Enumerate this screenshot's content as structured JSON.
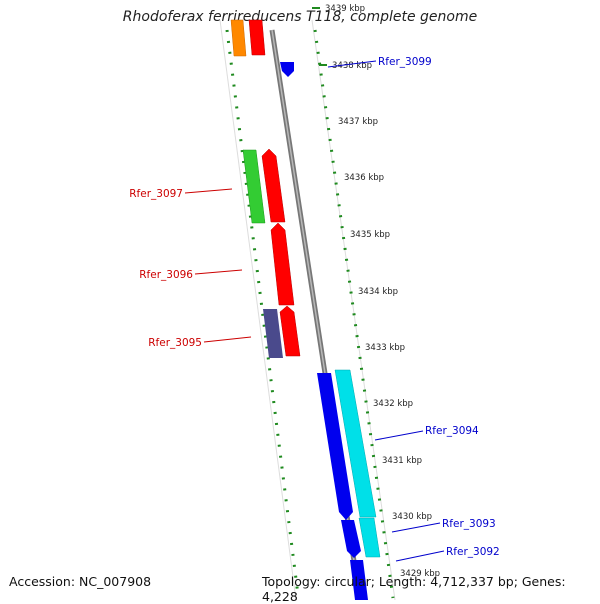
{
  "title": "Rhodoferax ferrireducens T118, complete genome",
  "footer": {
    "accession": "Accession: NC_007908",
    "summary": "Topology: circular; Length: 4,712,337 bp; Genes: 4,228"
  },
  "ticks": [
    "3439 kbp",
    "3438 kbp",
    "3437 kbp",
    "3436 kbp",
    "3435 kbp",
    "3434 kbp",
    "3433 kbp",
    "3432 kbp",
    "3431 kbp",
    "3430 kbp",
    "3429 kbp"
  ],
  "labels": {
    "rfer_3099": "Rfer_3099",
    "rfer_3097": "Rfer_3097",
    "rfer_3096": "Rfer_3096",
    "rfer_3095": "Rfer_3095",
    "rfer_3094": "Rfer_3094",
    "rfer_3093": "Rfer_3093",
    "rfer_3092": "Rfer_3092"
  },
  "colors": {
    "backbone": "#8a8a8a",
    "orf_strand": "#1f8a1f",
    "forward_gene": "#ff0000",
    "reverse_gene": "#0000ee",
    "label_forward": "#cc0000",
    "label_reverse": "#0000cc",
    "orange_gene": "#ff8800",
    "green_gene": "#33cc33",
    "purple_gene": "#4a4a8c",
    "cyan_gene": "#00e0e8"
  }
}
